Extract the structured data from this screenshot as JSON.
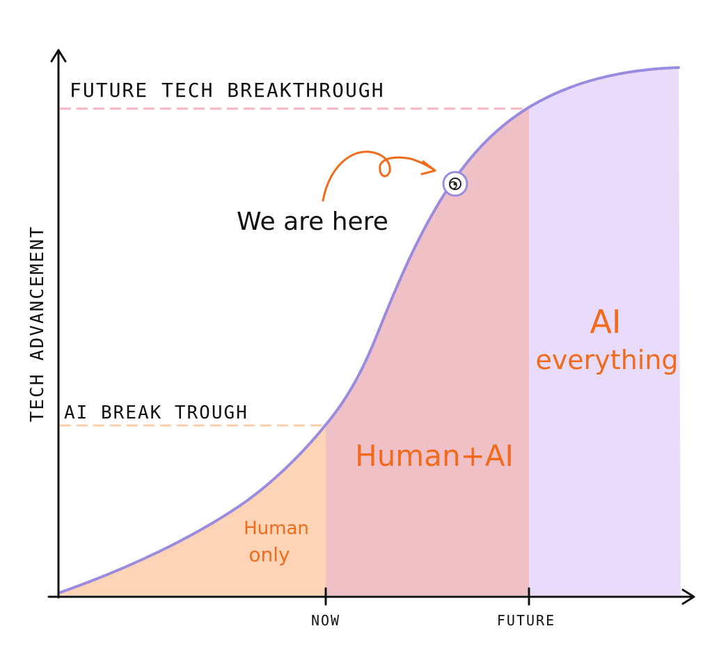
{
  "threshold_labels": {
    "future_breakthrough": "FUTURE TECH BREAKTHROUGH",
    "ai_breakthrough": "AI BREAK TROUGH"
  },
  "axis": {
    "y_label": "TECH ADVANCEMENT",
    "x_ticks": [
      "NOW",
      "FUTURE"
    ]
  },
  "regions": {
    "human_only": {
      "line1": "Human",
      "line2": "only",
      "fill": "#fdd4b6"
    },
    "human_ai": {
      "label": "Human+AI",
      "fill": "#efc0c6"
    },
    "ai_everything": {
      "line1": "AI",
      "line2": "everything",
      "fill": "#e8dcfa"
    }
  },
  "annotation": {
    "text": "We are here"
  },
  "colors": {
    "curve": "#9b8be0",
    "region_text": "#f26a1b",
    "arrow": "#f26a1b",
    "future_dash": "#f2b5bf",
    "ai_dash": "#f8cda8",
    "axis": "#111111"
  }
}
